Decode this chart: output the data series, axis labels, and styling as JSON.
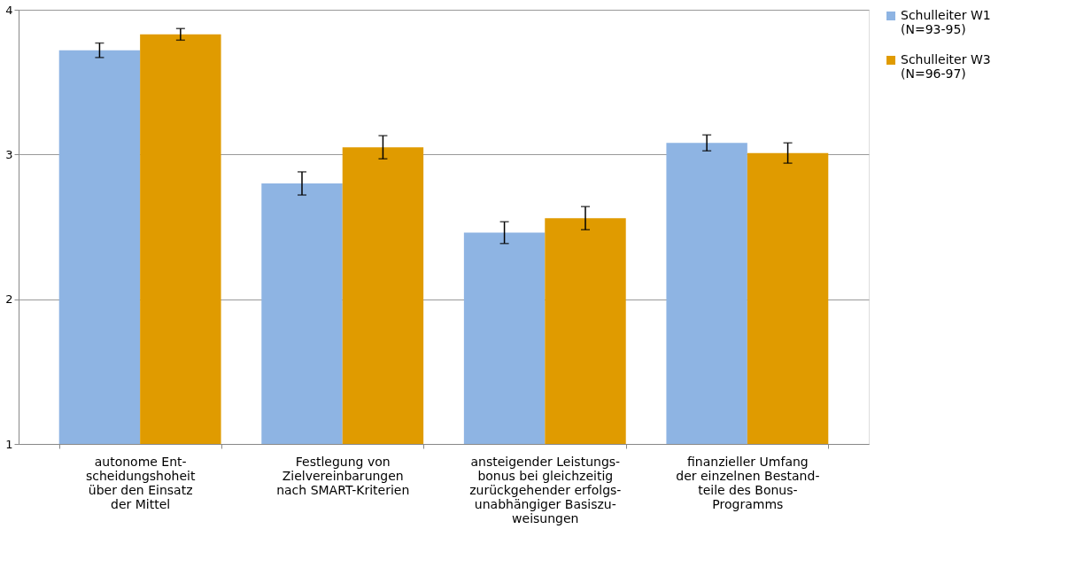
{
  "chart_data": {
    "type": "bar",
    "categories": [
      "autonome Ent-\nscheidungshoheit\nüber den Einsatz\nder Mittel",
      "Festlegung von\nZielvereinbarungen\nnach SMART-Kriterien",
      "ansteigender Leistungs-\nbonus bei gleichzeitig\nzurückgehender erfolgs-\nunabhängiger Basiszu-\nweisungen",
      "finanzieller Umfang\nder einzelnen Bestand-\nteile des Bonus-\nProgramms"
    ],
    "series": [
      {
        "name": "Schulleiter W1\n(N=93-95)",
        "color": "#8eb4e3",
        "values": [
          3.72,
          2.8,
          2.46,
          3.08
        ],
        "errors": [
          0.05,
          0.08,
          0.075,
          0.055
        ]
      },
      {
        "name": "Schulleiter W3\n(N=96-97)",
        "color": "#e09b00",
        "values": [
          3.83,
          3.05,
          2.56,
          3.01
        ],
        "errors": [
          0.04,
          0.08,
          0.08,
          0.07
        ]
      }
    ],
    "ylim": [
      1,
      4
    ],
    "yticks": [
      1,
      2,
      3,
      4
    ],
    "grid": "y",
    "legend": "right"
  }
}
